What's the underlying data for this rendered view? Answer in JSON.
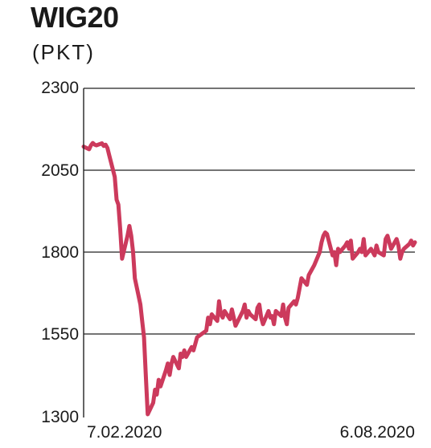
{
  "chart_data": {
    "type": "line",
    "title": "WIG20",
    "subtitle": "(PKT)",
    "xlabel": "",
    "ylabel": "",
    "ylim": [
      1300,
      2300
    ],
    "yticks": [
      2300,
      2050,
      1800,
      1550,
      1300
    ],
    "x_range": [
      "7.02.2020",
      "6.08.2020"
    ],
    "x_tick_labels": [
      "7.02.2020",
      "6.08.2020"
    ],
    "grid": true,
    "line_color": "#cc3a5c",
    "grid_color": "#222222",
    "series": [
      {
        "x": [
          "2020-02-07",
          "2020-02-10",
          "2020-02-11",
          "2020-02-12",
          "2020-02-13",
          "2020-02-14",
          "2020-02-17",
          "2020-02-18",
          "2020-02-19",
          "2020-02-20",
          "2020-02-21",
          "2020-02-24",
          "2020-02-25",
          "2020-02-26",
          "2020-02-27",
          "2020-02-28",
          "2020-03-02",
          "2020-03-03",
          "2020-03-04",
          "2020-03-05",
          "2020-03-06",
          "2020-03-09",
          "2020-03-10",
          "2020-03-11",
          "2020-03-12",
          "2020-03-13",
          "2020-03-16",
          "2020-03-17",
          "2020-03-18",
          "2020-03-19",
          "2020-03-20",
          "2020-03-23",
          "2020-03-24",
          "2020-03-25",
          "2020-03-26",
          "2020-03-27",
          "2020-03-30",
          "2020-03-31",
          "2020-04-01",
          "2020-04-02",
          "2020-04-03",
          "2020-04-06",
          "2020-04-07",
          "2020-04-08",
          "2020-04-09",
          "2020-04-14",
          "2020-04-15",
          "2020-04-16",
          "2020-04-17",
          "2020-04-20",
          "2020-04-21",
          "2020-04-22",
          "2020-04-23",
          "2020-04-24",
          "2020-04-27",
          "2020-04-28",
          "2020-04-29",
          "2020-04-30",
          "2020-05-04",
          "2020-05-05",
          "2020-05-06",
          "2020-05-07",
          "2020-05-08",
          "2020-05-11",
          "2020-05-12",
          "2020-05-13",
          "2020-05-14",
          "2020-05-15",
          "2020-05-18",
          "2020-05-19",
          "2020-05-20",
          "2020-05-21",
          "2020-05-22",
          "2020-05-25",
          "2020-05-26",
          "2020-05-27",
          "2020-05-28",
          "2020-05-29",
          "2020-06-01",
          "2020-06-02",
          "2020-06-03",
          "2020-06-04",
          "2020-06-05",
          "2020-06-08",
          "2020-06-09",
          "2020-06-10",
          "2020-06-12",
          "2020-06-15",
          "2020-06-16",
          "2020-06-17",
          "2020-06-18",
          "2020-06-19",
          "2020-06-22",
          "2020-06-23",
          "2020-06-24",
          "2020-06-25",
          "2020-06-26",
          "2020-06-29",
          "2020-06-30",
          "2020-07-01",
          "2020-07-02",
          "2020-07-03",
          "2020-07-06",
          "2020-07-07",
          "2020-07-08",
          "2020-07-09",
          "2020-07-10",
          "2020-07-13",
          "2020-07-14",
          "2020-07-15",
          "2020-07-16",
          "2020-07-17",
          "2020-07-20",
          "2020-07-21",
          "2020-07-22",
          "2020-07-23",
          "2020-07-24",
          "2020-07-27",
          "2020-07-28",
          "2020-07-29",
          "2020-07-30",
          "2020-07-31",
          "2020-08-03",
          "2020-08-04",
          "2020-08-05",
          "2020-08-06"
        ],
        "values": [
          2122,
          2114,
          2126,
          2133,
          2128,
          2126,
          2132,
          2124,
          2128,
          2118,
          2095,
          2030,
          1960,
          1945,
          1870,
          1780,
          1850,
          1880,
          1850,
          1800,
          1720,
          1640,
          1590,
          1540,
          1420,
          1305,
          1340,
          1380,
          1365,
          1410,
          1390,
          1440,
          1460,
          1425,
          1460,
          1480,
          1445,
          1490,
          1480,
          1500,
          1480,
          1510,
          1500,
          1520,
          1540,
          1560,
          1600,
          1580,
          1610,
          1590,
          1650,
          1610,
          1600,
          1620,
          1595,
          1625,
          1600,
          1575,
          1620,
          1640,
          1600,
          1620,
          1610,
          1595,
          1630,
          1640,
          1600,
          1580,
          1620,
          1600,
          1605,
          1580,
          1620,
          1605,
          1640,
          1600,
          1580,
          1630,
          1650,
          1640,
          1660,
          1690,
          1720,
          1700,
          1730,
          1740,
          1760,
          1800,
          1830,
          1850,
          1860,
          1855,
          1790,
          1800,
          1760,
          1810,
          1800,
          1820,
          1830,
          1810,
          1835,
          1780,
          1800,
          1810,
          1800,
          1840,
          1790,
          1810,
          1800,
          1790,
          1820,
          1800,
          1790,
          1840,
          1850,
          1830,
          1810,
          1840,
          1820,
          1780,
          1800,
          1810,
          1825,
          1835,
          1820,
          1830
        ]
      }
    ]
  }
}
